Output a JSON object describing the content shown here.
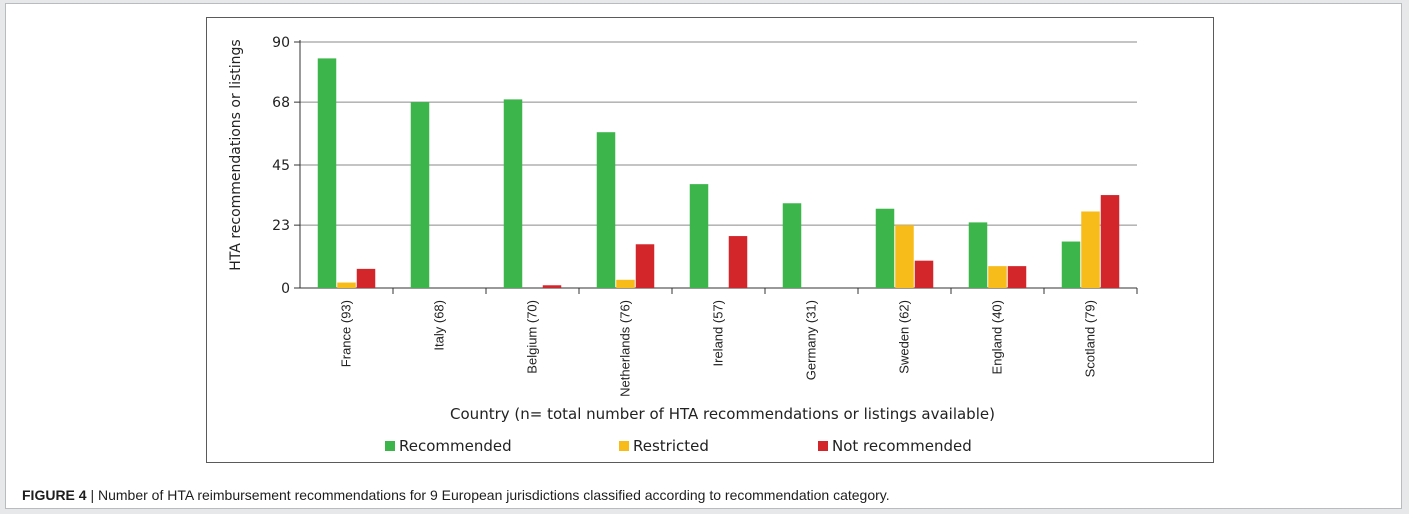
{
  "figure": {
    "label": "FIGURE 4",
    "separator": "|",
    "caption": "Number of HTA reimbursement recommendations for 9 European jurisdictions classified according to recommendation category."
  },
  "chart_data": {
    "type": "bar",
    "title": "",
    "xlabel": "Country (n= total number of HTA recommendations or listings available)",
    "ylabel": "HTA recommendations or listings",
    "categories": [
      "France (93)",
      "Italy (68)",
      "Belgium (70)",
      "Netherlands (76)",
      "Ireland (57)",
      "Germany (31)",
      "Sweden (62)",
      "England (40)",
      "Scotland (79)"
    ],
    "y_ticks": [
      "90",
      "68",
      "45",
      "23",
      "0"
    ],
    "ylim": [
      0,
      90
    ],
    "grid": true,
    "legend_position": "bottom",
    "series": [
      {
        "name": "Recommended",
        "color": "#3cb54a",
        "values": [
          84,
          68,
          69,
          57,
          38,
          31,
          29,
          24,
          17
        ]
      },
      {
        "name": "Restricted",
        "color": "#f8bc1a",
        "values": [
          2,
          0,
          0,
          3,
          0,
          0,
          23,
          8,
          28
        ]
      },
      {
        "name": "Not recommended",
        "color": "#d3262b",
        "values": [
          7,
          0,
          1,
          16,
          19,
          0,
          10,
          8,
          34
        ]
      }
    ]
  }
}
